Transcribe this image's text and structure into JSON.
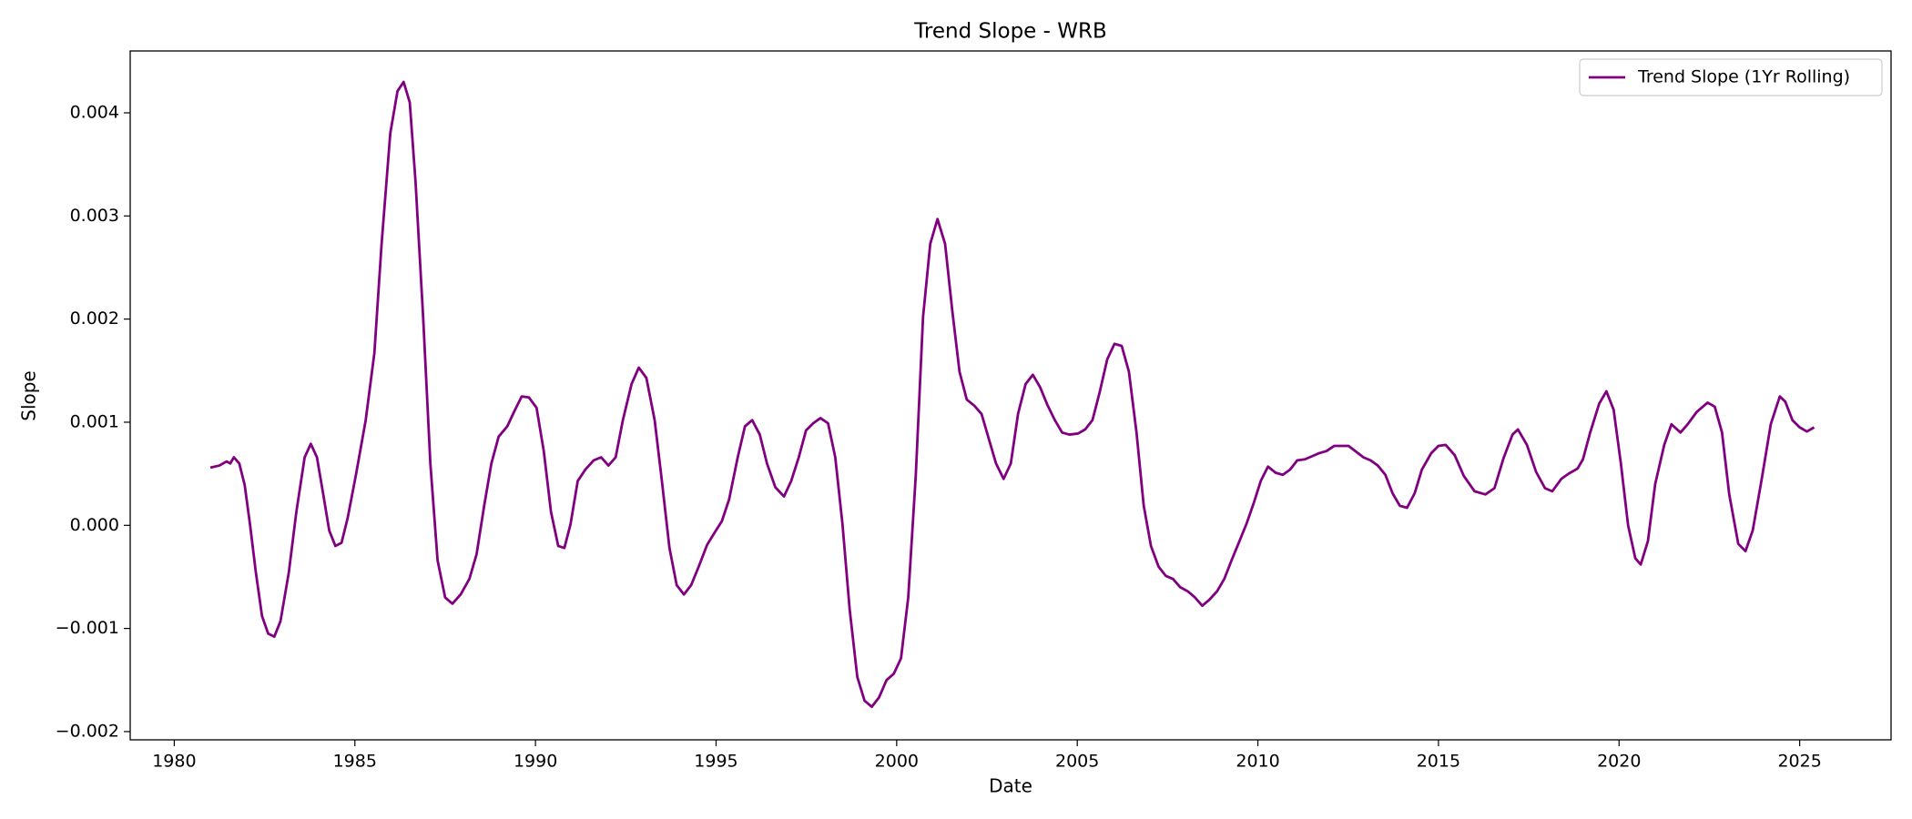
{
  "chart_data": {
    "type": "line",
    "title": "Trend Slope - WRB",
    "xlabel": "Date",
    "ylabel": "Slope",
    "legend": "upper right",
    "xlim": [
      1978.78,
      2027.53
    ],
    "xticks": [
      1980,
      1985,
      1990,
      1995,
      2000,
      2005,
      2010,
      2015,
      2020,
      2025
    ],
    "ylim": [
      -0.00208,
      0.0046
    ],
    "yticks": [
      {
        "value": -0.002,
        "label": "−0.002"
      },
      {
        "value": -0.001,
        "label": "−0.001"
      },
      {
        "value": 0,
        "label": "0.000"
      },
      0.001,
      0.002,
      0.003,
      0.004
    ],
    "x": [
      1981.0,
      1981.25,
      1981.45,
      1981.55,
      1981.65,
      1981.8,
      1981.95,
      1982.1,
      1982.26,
      1982.43,
      1982.6,
      1982.77,
      1982.94,
      1983.17,
      1983.38,
      1983.61,
      1983.78,
      1983.95,
      1984.12,
      1984.29,
      1984.46,
      1984.63,
      1984.8,
      1985.03,
      1985.3,
      1985.54,
      1985.74,
      1985.98,
      1986.18,
      1986.35,
      1986.52,
      1986.68,
      1986.89,
      1987.09,
      1987.29,
      1987.5,
      1987.7,
      1987.93,
      1988.17,
      1988.37,
      1988.58,
      1988.78,
      1988.98,
      1989.22,
      1989.42,
      1989.62,
      1989.82,
      1990.03,
      1990.23,
      1990.43,
      1990.63,
      1990.8,
      1990.97,
      1991.17,
      1991.38,
      1991.61,
      1991.82,
      1992.02,
      1992.22,
      1992.42,
      1992.66,
      1992.86,
      1993.07,
      1993.3,
      1993.5,
      1993.71,
      1993.91,
      1994.11,
      1994.31,
      1994.52,
      1994.75,
      1994.96,
      1995.16,
      1995.36,
      1995.6,
      1995.8,
      1996.0,
      1996.21,
      1996.41,
      1996.64,
      1996.88,
      1997.08,
      1997.29,
      1997.49,
      1997.69,
      1997.89,
      1998.1,
      1998.3,
      1998.5,
      1998.7,
      1998.91,
      1999.11,
      1999.31,
      1999.51,
      1999.72,
      1999.92,
      2000.12,
      2000.32,
      2000.53,
      2000.73,
      2000.93,
      2001.13,
      2001.34,
      2001.54,
      2001.74,
      2001.94,
      2002.15,
      2002.35,
      2002.55,
      2002.75,
      2002.96,
      2003.16,
      2003.36,
      2003.57,
      2003.77,
      2003.97,
      2004.17,
      2004.38,
      2004.58,
      2004.78,
      2005.02,
      2005.22,
      2005.42,
      2005.62,
      2005.83,
      2006.03,
      2006.23,
      2006.43,
      2006.64,
      2006.84,
      2007.04,
      2007.25,
      2007.45,
      2007.65,
      2007.85,
      2008.06,
      2008.26,
      2008.46,
      2008.66,
      2008.87,
      2009.07,
      2009.27,
      2009.47,
      2009.68,
      2009.88,
      2010.08,
      2010.28,
      2010.49,
      2010.69,
      2010.89,
      2011.09,
      2011.3,
      2011.5,
      2011.7,
      2011.9,
      2012.11,
      2012.51,
      2012.92,
      2013.12,
      2013.32,
      2013.53,
      2013.73,
      2013.93,
      2014.13,
      2014.34,
      2014.54,
      2014.8,
      2015.0,
      2015.2,
      2015.45,
      2015.7,
      2016.0,
      2016.3,
      2016.55,
      2016.8,
      2017.05,
      2017.2,
      2017.45,
      2017.7,
      2017.95,
      2018.15,
      2018.4,
      2018.6,
      2018.85,
      2019.0,
      2019.2,
      2019.45,
      2019.65,
      2019.85,
      2020.05,
      2020.25,
      2020.45,
      2020.6,
      2020.8,
      2021.0,
      2021.25,
      2021.45,
      2021.7,
      2021.9,
      2022.15,
      2022.45,
      2022.65,
      2022.85,
      2023.05,
      2023.3,
      2023.5,
      2023.7,
      2023.95,
      2024.2,
      2024.45,
      2024.6,
      2024.8,
      2025.0,
      2025.2,
      2025.4
    ],
    "series": [
      {
        "name": "Trend Slope (1Yr Rolling)",
        "color": "#800080",
        "values": [
          0.00056,
          0.00058,
          0.00062,
          0.0006,
          0.00066,
          0.0006,
          0.00039,
          0.0,
          -0.00046,
          -0.00088,
          -0.00105,
          -0.00108,
          -0.00093,
          -0.00046,
          0.00013,
          0.00066,
          0.00079,
          0.00066,
          0.00031,
          -5e-05,
          -0.0002,
          -0.00017,
          7e-05,
          0.00049,
          0.00102,
          0.00167,
          0.00273,
          0.0038,
          0.00421,
          0.0043,
          0.0041,
          0.00333,
          0.00202,
          0.0006,
          -0.00034,
          -0.0007,
          -0.00076,
          -0.00067,
          -0.00052,
          -0.00028,
          0.00019,
          0.0006,
          0.00086,
          0.00096,
          0.00111,
          0.00125,
          0.00124,
          0.00114,
          0.00072,
          0.00013,
          -0.0002,
          -0.00022,
          1e-05,
          0.00043,
          0.00054,
          0.00063,
          0.00066,
          0.00058,
          0.00066,
          0.00102,
          0.00137,
          0.00153,
          0.00143,
          0.00102,
          0.00043,
          -0.00022,
          -0.00058,
          -0.00067,
          -0.00058,
          -0.0004,
          -0.00019,
          -7e-05,
          4e-05,
          0.00025,
          0.00066,
          0.00096,
          0.00102,
          0.00088,
          0.0006,
          0.00037,
          0.00028,
          0.00043,
          0.00066,
          0.00092,
          0.00099,
          0.00104,
          0.00099,
          0.00066,
          1e-05,
          -0.00082,
          -0.00147,
          -0.0017,
          -0.00176,
          -0.00167,
          -0.0015,
          -0.00144,
          -0.00129,
          -0.0007,
          0.00049,
          0.00202,
          0.00273,
          0.00297,
          0.00273,
          0.00208,
          0.00149,
          0.00122,
          0.00116,
          0.00108,
          0.00084,
          0.0006,
          0.00045,
          0.0006,
          0.00108,
          0.00137,
          0.00146,
          0.00134,
          0.00117,
          0.00102,
          0.0009,
          0.00088,
          0.00089,
          0.00093,
          0.00102,
          0.00129,
          0.00161,
          0.00176,
          0.00174,
          0.00149,
          0.0009,
          0.00019,
          -0.0002,
          -0.0004,
          -0.00049,
          -0.00052,
          -0.0006,
          -0.00064,
          -0.0007,
          -0.00078,
          -0.00072,
          -0.00064,
          -0.00052,
          -0.00034,
          -0.00017,
          1e-05,
          0.00021,
          0.00043,
          0.00057,
          0.00051,
          0.00049,
          0.00054,
          0.00063,
          0.00064,
          0.00067,
          0.0007,
          0.00072,
          0.00077,
          0.00077,
          0.00066,
          0.00063,
          0.00058,
          0.00049,
          0.00031,
          0.00019,
          0.00017,
          0.00031,
          0.00054,
          0.0007,
          0.00077,
          0.00078,
          0.00068,
          0.00048,
          0.00033,
          0.0003,
          0.00036,
          0.00065,
          0.00088,
          0.00093,
          0.00078,
          0.00052,
          0.00036,
          0.00033,
          0.00045,
          0.0005,
          0.00055,
          0.00064,
          0.0009,
          0.00118,
          0.0013,
          0.00112,
          0.0006,
          0.0,
          -0.00032,
          -0.00038,
          -0.00015,
          0.0004,
          0.00078,
          0.00098,
          0.0009,
          0.00098,
          0.0011,
          0.00119,
          0.00115,
          0.0009,
          0.0003,
          -0.00018,
          -0.00025,
          -5e-05,
          0.00045,
          0.00098,
          0.00125,
          0.0012,
          0.00102,
          0.00095,
          0.00091,
          0.00095
        ]
      }
    ]
  }
}
